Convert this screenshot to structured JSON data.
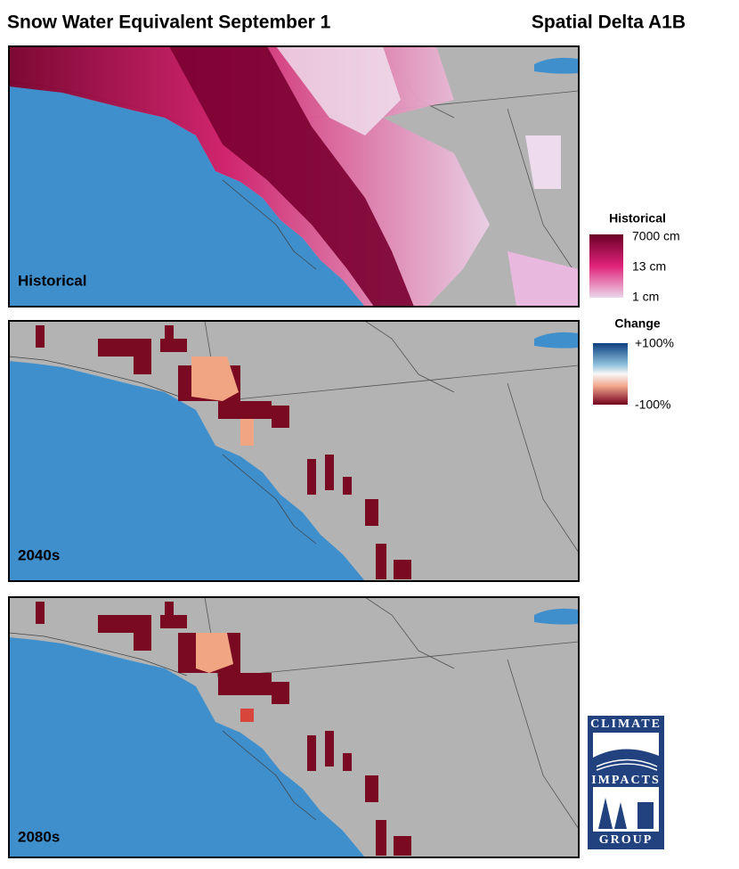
{
  "header": {
    "title": "Snow Water Equivalent September 1",
    "subtitle": "Spatial Delta A1B"
  },
  "panels": [
    {
      "label": "Historical"
    },
    {
      "label": "2040s"
    },
    {
      "label": "2080s"
    }
  ],
  "legends": [
    {
      "title": "Historical",
      "labels": [
        "7000 cm",
        "13 cm",
        "1 cm"
      ]
    },
    {
      "title": "Change",
      "labels": [
        "+100%",
        "-100%"
      ]
    }
  ],
  "logo": {
    "top": "CLIMATE",
    "middle": "IMPACTS",
    "bottom": "GROUP"
  }
}
